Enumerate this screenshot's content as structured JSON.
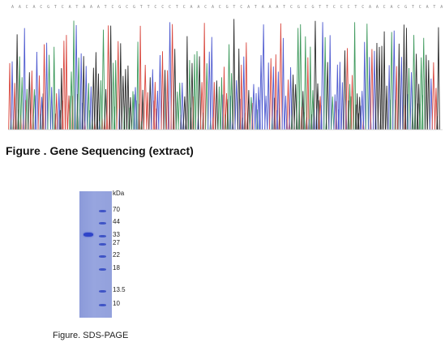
{
  "sequencing": {
    "caption": "Figure . Gene Sequencing (extract)",
    "colors": {
      "A": "#3f9a5d",
      "C": "#4f5bd0",
      "G": "#2b2b2b",
      "T": "#d9483f"
    }
  },
  "gel": {
    "caption": "Figure. SDS-PAGE",
    "unit_label": "kDa",
    "ladder": [
      "70",
      "44",
      "33",
      "27",
      "22",
      "18",
      "13.5",
      "10"
    ],
    "colors": {
      "gel": "#93a1dc",
      "band": "#2f44c9"
    }
  }
}
